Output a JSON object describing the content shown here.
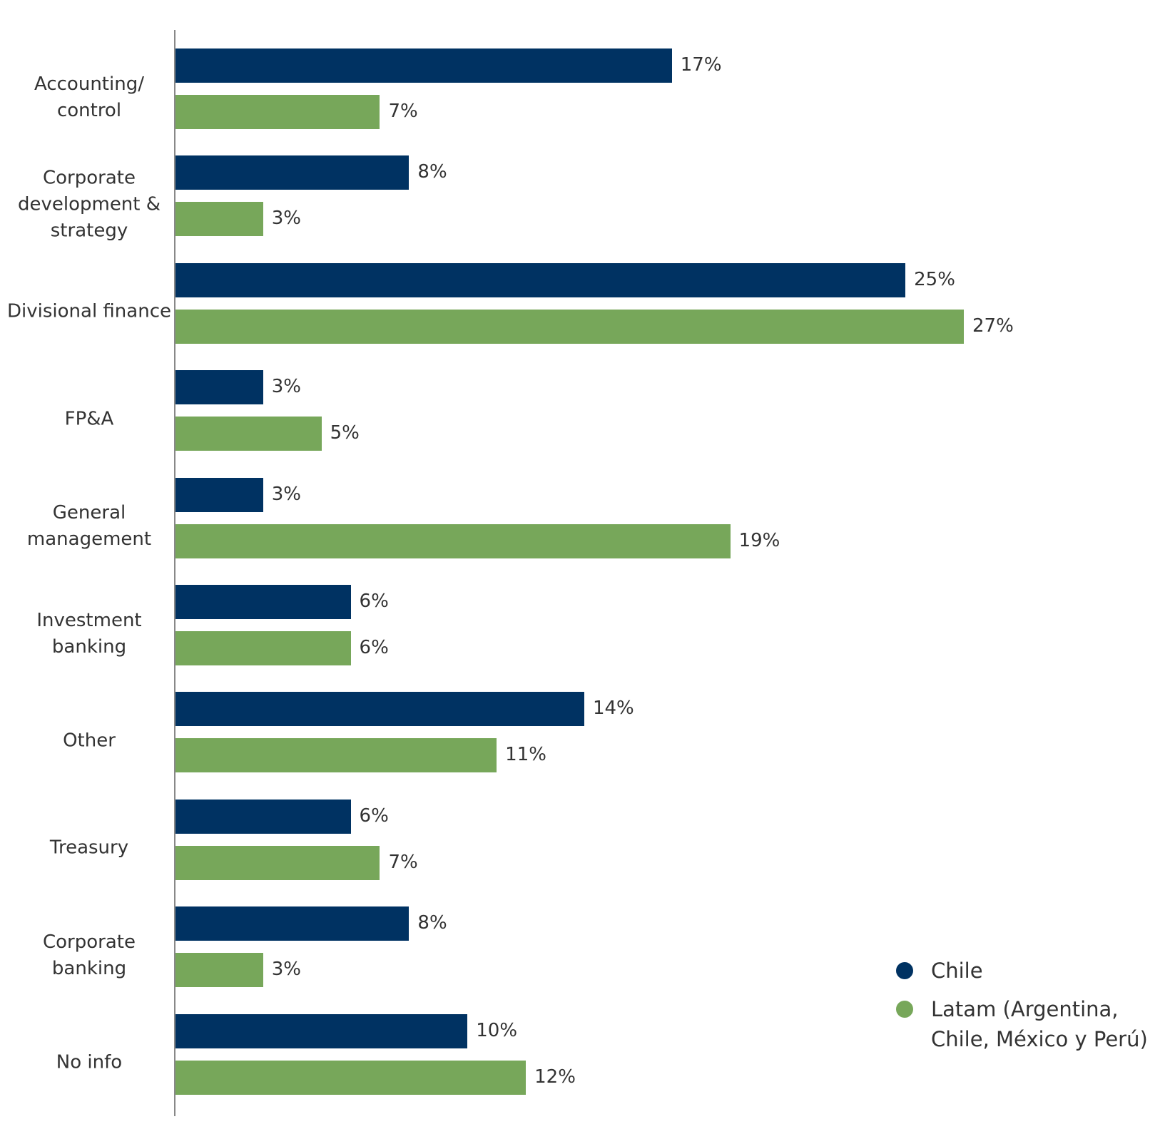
{
  "chart_data": {
    "type": "bar",
    "orientation": "horizontal",
    "categories": [
      "Accounting/ control",
      "Corporate development & strategy",
      "Divisional finance",
      "FP&A",
      "General management",
      "Investment banking",
      "Other",
      "Treasury",
      "Corporate banking",
      "No info"
    ],
    "series": [
      {
        "name": "Chile",
        "color": "#003262",
        "values": [
          17,
          8,
          25,
          3,
          3,
          6,
          14,
          6,
          8,
          10
        ],
        "value_labels": [
          "17%",
          "8%",
          "25%",
          "3%",
          "3%",
          "6%",
          "14%",
          "6%",
          "8%",
          "10%"
        ]
      },
      {
        "name": "Latam (Argentina, Chile, México y Perú)",
        "color": "#77a75a",
        "values": [
          7,
          3,
          27,
          5,
          19,
          6,
          11,
          7,
          3,
          12
        ],
        "value_labels": [
          "7%",
          "3%",
          "27%",
          "5%",
          "19%",
          "6%",
          "11%",
          "7%",
          "3%",
          "12%"
        ]
      }
    ],
    "legend": "bottom-right"
  }
}
